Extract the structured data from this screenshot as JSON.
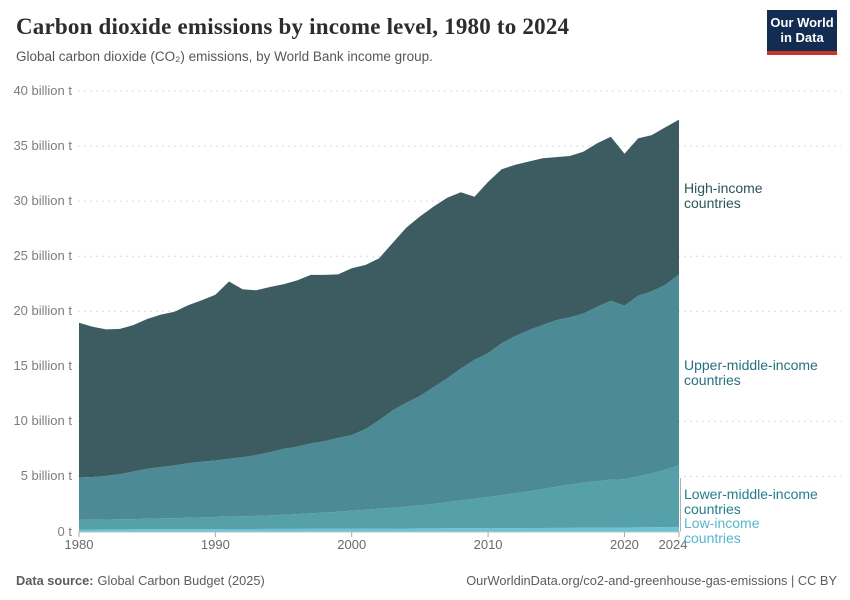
{
  "header": {
    "title": "Carbon dioxide emissions by income level, 1980 to 2024",
    "subtitle": "Global carbon dioxide (CO₂) emissions, by World Bank income group."
  },
  "logo": {
    "line1": "Our World",
    "line2": "in Data",
    "bg_color": "#132c51",
    "accent_color": "#c6362b"
  },
  "footer": {
    "source_label": "Data source:",
    "source_value": "Global Carbon Budget (2025)",
    "credit": "OurWorldinData.org/co2-and-greenhouse-gas-emissions | CC BY"
  },
  "chart_data": {
    "type": "area",
    "stacked": true,
    "title": "Carbon dioxide emissions by income level, 1980 to 2024",
    "unit": "billion t",
    "xlim": [
      1980,
      2024
    ],
    "ylim": [
      0,
      40
    ],
    "grid": "dashed",
    "legend_position": "right-of-plot",
    "x": [
      1980,
      1981,
      1982,
      1983,
      1984,
      1985,
      1986,
      1987,
      1988,
      1989,
      1990,
      1991,
      1992,
      1993,
      1994,
      1995,
      1996,
      1997,
      1998,
      1999,
      2000,
      2001,
      2002,
      2003,
      2004,
      2005,
      2006,
      2007,
      2008,
      2009,
      2010,
      2011,
      2012,
      2013,
      2014,
      2015,
      2016,
      2017,
      2018,
      2019,
      2020,
      2021,
      2022,
      2023,
      2024
    ],
    "x_ticks": [
      1980,
      1990,
      2000,
      2010,
      2020,
      2024
    ],
    "y_ticks": [
      {
        "value": 0,
        "label": "0 t",
        "extent": "plot"
      },
      {
        "value": 5,
        "label": "5 billion t",
        "extent": "full"
      },
      {
        "value": 10,
        "label": "10 billion t",
        "extent": "full"
      },
      {
        "value": 15,
        "label": "15 billion t",
        "extent": "plot"
      },
      {
        "value": 20,
        "label": "20 billion t",
        "extent": "full"
      },
      {
        "value": 25,
        "label": "25 billion t",
        "extent": "full"
      },
      {
        "value": 30,
        "label": "30 billion t",
        "extent": "plot"
      },
      {
        "value": 35,
        "label": "35 billion t",
        "extent": "full"
      },
      {
        "value": 40,
        "label": "40 billion t",
        "extent": "full"
      }
    ],
    "series": [
      {
        "id": "low-income",
        "label": "Low-income countries",
        "color": "#68c5d8",
        "label_color": "#55b6ce",
        "values": [
          0.18,
          0.18,
          0.19,
          0.19,
          0.2,
          0.2,
          0.21,
          0.21,
          0.22,
          0.22,
          0.22,
          0.23,
          0.23,
          0.23,
          0.24,
          0.24,
          0.24,
          0.25,
          0.25,
          0.25,
          0.25,
          0.26,
          0.26,
          0.27,
          0.27,
          0.28,
          0.28,
          0.29,
          0.29,
          0.3,
          0.3,
          0.31,
          0.31,
          0.32,
          0.32,
          0.33,
          0.33,
          0.34,
          0.34,
          0.35,
          0.36,
          0.37,
          0.39,
          0.4,
          0.42
        ]
      },
      {
        "id": "lower-middle-income",
        "label": "Lower-middle-income countries",
        "color": "#56a0aa",
        "label_color": "#257e8e",
        "values": [
          0.87,
          0.89,
          0.9,
          0.92,
          0.93,
          0.96,
          0.98,
          1.01,
          1.03,
          1.06,
          1.1,
          1.13,
          1.16,
          1.19,
          1.22,
          1.28,
          1.34,
          1.4,
          1.47,
          1.55,
          1.65,
          1.72,
          1.81,
          1.89,
          1.99,
          2.09,
          2.22,
          2.36,
          2.53,
          2.67,
          2.82,
          2.99,
          3.17,
          3.34,
          3.54,
          3.73,
          3.93,
          4.1,
          4.24,
          4.35,
          4.39,
          4.63,
          4.89,
          5.22,
          5.58
        ]
      },
      {
        "id": "upper-middle-income",
        "label": "Upper-middle-income countries",
        "color": "#4c8b96",
        "label_color": "#26707f",
        "values": [
          3.85,
          3.88,
          3.96,
          4.09,
          4.32,
          4.54,
          4.66,
          4.78,
          4.95,
          5.07,
          5.13,
          5.24,
          5.36,
          5.53,
          5.74,
          5.98,
          6.12,
          6.35,
          6.48,
          6.7,
          6.85,
          7.32,
          8.03,
          8.84,
          9.44,
          9.93,
          10.6,
          11.25,
          11.98,
          12.63,
          13.08,
          13.8,
          14.27,
          14.64,
          14.89,
          15.14,
          15.19,
          15.36,
          15.82,
          16.25,
          15.75,
          16.4,
          16.52,
          16.78,
          17.35
        ]
      },
      {
        "id": "high-income",
        "label": "High-income countries",
        "color": "#3d5c61",
        "label_color": "#2c545c",
        "values": [
          14.05,
          13.65,
          13.3,
          13.2,
          13.3,
          13.6,
          13.85,
          13.95,
          14.35,
          14.65,
          15.05,
          16.1,
          15.25,
          14.95,
          15.0,
          14.95,
          15.1,
          15.3,
          15.1,
          14.85,
          15.15,
          14.9,
          14.7,
          15.2,
          15.9,
          16.3,
          16.4,
          16.4,
          16.0,
          14.8,
          15.55,
          15.8,
          15.55,
          15.3,
          15.15,
          14.8,
          14.65,
          14.7,
          14.85,
          14.9,
          13.8,
          14.3,
          14.2,
          14.3,
          14.05
        ]
      }
    ]
  }
}
